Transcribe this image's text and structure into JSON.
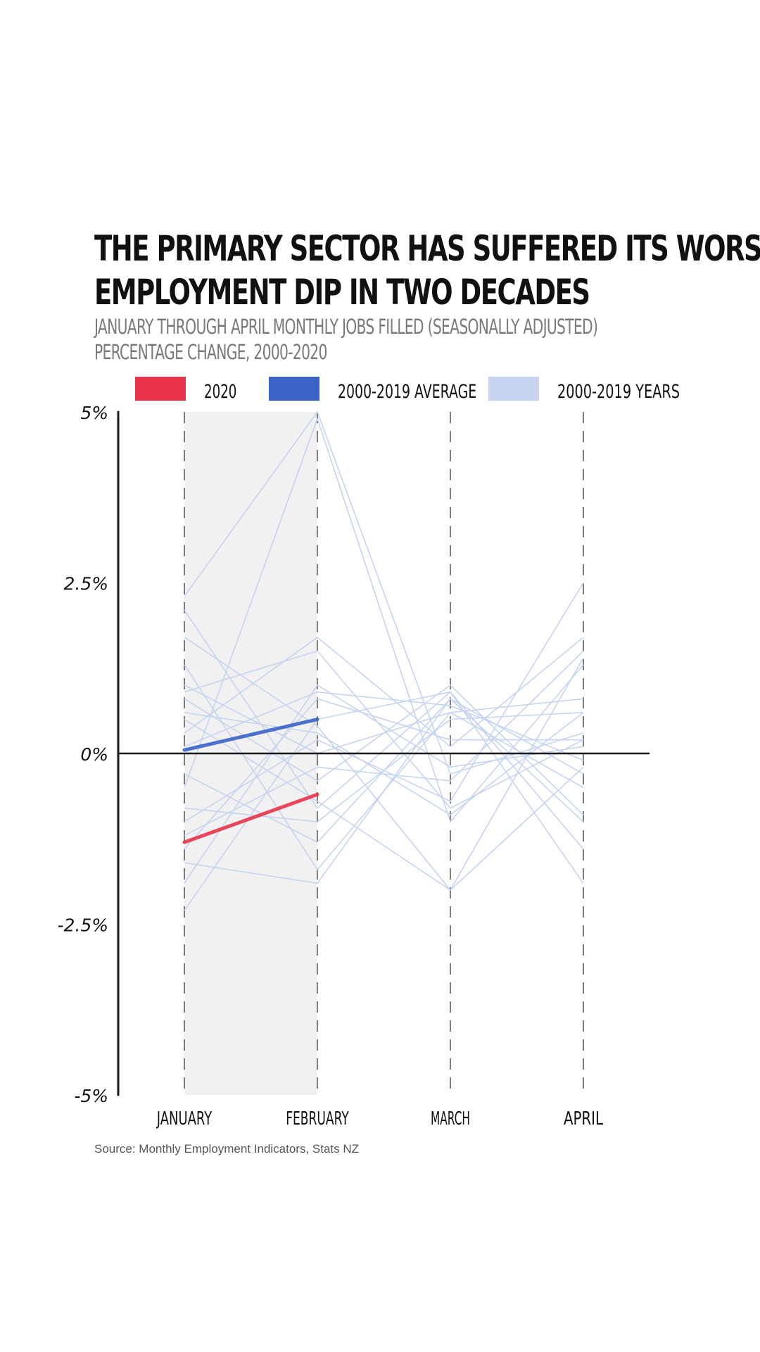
{
  "title_lines": [
    "The primary sector has suffered its worst",
    "employment dip in two decades"
  ],
  "subtitle_lines": [
    "January through April monthly jobs filled (seasonally adjusted)",
    "percentage change, 2000-2020"
  ],
  "source": "Source: Monthly Employment Indicators, Stats NZ",
  "colors": {
    "y2020": "#e8334a",
    "average": "#3a63c8",
    "years": "#c7d4ef",
    "shade": "#f0f1f0",
    "axis": "#1a1a1a"
  },
  "chart_data": {
    "type": "line",
    "categories": [
      "JANUARY",
      "FEBRUARY",
      "MARCH",
      "APRIL"
    ],
    "ylim": [
      -5,
      5
    ],
    "yticks": [
      "5%",
      "2.5%",
      "0%",
      "-2.5%",
      "-5%"
    ],
    "ytick_values": [
      5,
      2.5,
      0,
      -2.5,
      -5
    ],
    "shaded_months": [
      "JANUARY",
      "FEBRUARY"
    ],
    "legend": [
      {
        "label": "2020",
        "key": "y2020"
      },
      {
        "label": "2000-2019 AVERAGE",
        "key": "average"
      },
      {
        "label": "2000-2019 YEARS",
        "key": "years"
      }
    ],
    "series": [
      {
        "name": "2020",
        "values": [
          -1.3,
          -0.6,
          null,
          null
        ],
        "key": "y2020"
      },
      {
        "name": "2000-2019 AVERAGE",
        "values": [
          0.05,
          0.5,
          null,
          null
        ],
        "key": "average"
      }
    ],
    "years_series": [
      [
        2.3,
        5.0,
        -0.3,
        0.3
      ],
      [
        2.1,
        -0.8,
        0.9,
        -1.9
      ],
      [
        1.7,
        0.4,
        -2.0,
        1.4
      ],
      [
        1.3,
        -1.7,
        0.6,
        0.8
      ],
      [
        0.9,
        1.5,
        -0.8,
        0.2
      ],
      [
        0.8,
        -0.4,
        1.0,
        -0.9
      ],
      [
        0.3,
        1.7,
        0.1,
        1.7
      ],
      [
        0.1,
        0.9,
        0.7,
        -0.1
      ],
      [
        -0.5,
        4.9,
        -1.0,
        1.3
      ],
      [
        -0.8,
        -1.0,
        0.5,
        0.6
      ],
      [
        -1.0,
        0.2,
        -0.7,
        2.5
      ],
      [
        -1.6,
        -1.9,
        0.8,
        -0.3
      ],
      [
        -1.9,
        1.0,
        -0.2,
        0.1
      ],
      [
        -2.3,
        0.5,
        0.9,
        -1.4
      ],
      [
        -1.2,
        -0.2,
        -0.4,
        1.5
      ],
      [
        0.5,
        -0.7,
        -2.0,
        -0.2
      ],
      [
        1.0,
        0.0,
        0.6,
        -0.5
      ],
      [
        -0.3,
        -1.3,
        0.8,
        -1.0
      ],
      [
        0.6,
        0.3,
        -0.9,
        0.6
      ],
      [
        -1.4,
        0.8,
        0.2,
        0.2
      ]
    ]
  }
}
